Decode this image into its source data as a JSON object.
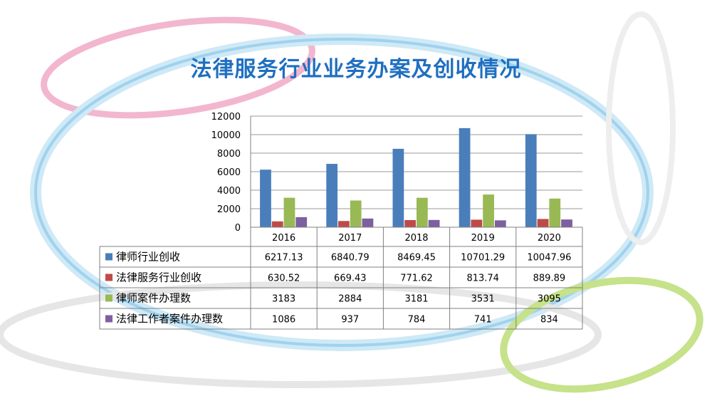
{
  "title": "法律服务行业业务办案及创收情况",
  "chart_data": {
    "type": "bar",
    "title": "法律服务行业业务办案及创收情况",
    "categories": [
      "2016",
      "2017",
      "2018",
      "2019",
      "2020"
    ],
    "ylim": [
      0,
      12000
    ],
    "yticks": [
      "0",
      "2000",
      "4000",
      "6000",
      "8000",
      "10000",
      "12000"
    ],
    "grid": true,
    "legend": "data-table",
    "series": [
      {
        "name": "律师行业创收",
        "color": "#4a7ebb",
        "values": [
          6217.13,
          6840.79,
          8469.45,
          10701.29,
          10047.96
        ],
        "labels": [
          "6217.13",
          "6840.79",
          "8469.45",
          "10701.29",
          "10047.96"
        ]
      },
      {
        "name": "法律服务行业创收",
        "color": "#be4b48",
        "values": [
          630.52,
          669.43,
          771.62,
          813.74,
          889.89
        ],
        "labels": [
          "630.52",
          "669.43",
          "771.62",
          "813.74",
          "889.89"
        ]
      },
      {
        "name": "律师案件办理数",
        "color": "#98b954",
        "values": [
          3183,
          2884,
          3181,
          3531,
          3095
        ],
        "labels": [
          "3183",
          "2884",
          "3181",
          "3531",
          "3095"
        ]
      },
      {
        "name": "法律工作者案件办理数",
        "color": "#7d60a0",
        "values": [
          1086,
          937,
          784,
          741,
          834
        ],
        "labels": [
          "1086",
          "937",
          "784",
          "741",
          "834"
        ]
      }
    ]
  }
}
